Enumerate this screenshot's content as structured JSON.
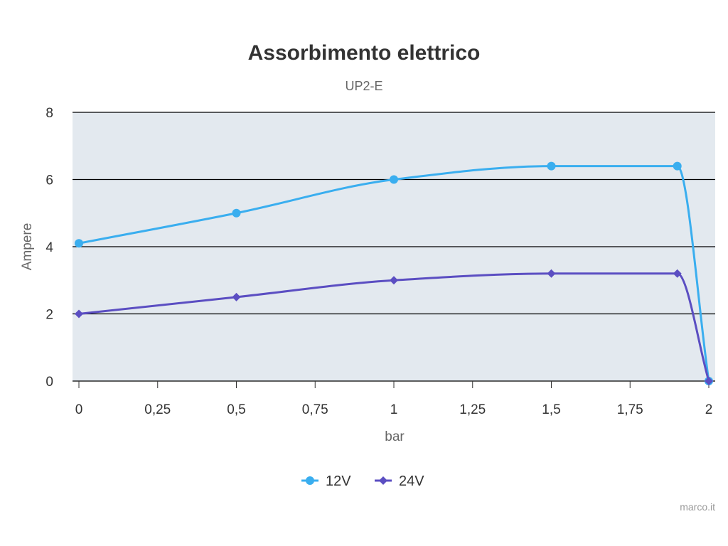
{
  "chart_data": {
    "type": "line",
    "title": "Assorbimento elettrico",
    "subtitle": "UP2-E",
    "xlabel": "bar",
    "ylabel": "Ampere",
    "xlim": [
      0,
      2
    ],
    "ylim": [
      0,
      8
    ],
    "x_ticks": [
      "0",
      "0,25",
      "0,5",
      "0,75",
      "1",
      "1,25",
      "1,5",
      "1,75",
      "2"
    ],
    "x_tick_values": [
      0,
      0.25,
      0.5,
      0.75,
      1,
      1.25,
      1.5,
      1.75,
      2
    ],
    "y_ticks": [
      "0",
      "2",
      "4",
      "6",
      "8"
    ],
    "y_tick_values": [
      0,
      2,
      4,
      6,
      8
    ],
    "grid": "horizontal",
    "legend_position": "bottom",
    "plot_background": "#e3e9ef",
    "series": [
      {
        "name": "12V",
        "color": "#3aaeef",
        "marker": "circle",
        "points": [
          [
            0,
            4.1
          ],
          [
            0.5,
            5
          ],
          [
            1,
            6
          ],
          [
            1.5,
            6.4
          ],
          [
            1.9,
            6.4
          ],
          [
            2,
            0
          ]
        ]
      },
      {
        "name": "24V",
        "color": "#5b4ec2",
        "marker": "diamond",
        "points": [
          [
            0,
            2
          ],
          [
            0.5,
            2.5
          ],
          [
            1,
            3
          ],
          [
            1.5,
            3.2
          ],
          [
            1.9,
            3.2
          ],
          [
            2,
            0
          ]
        ]
      }
    ]
  },
  "credit": "marco.it"
}
